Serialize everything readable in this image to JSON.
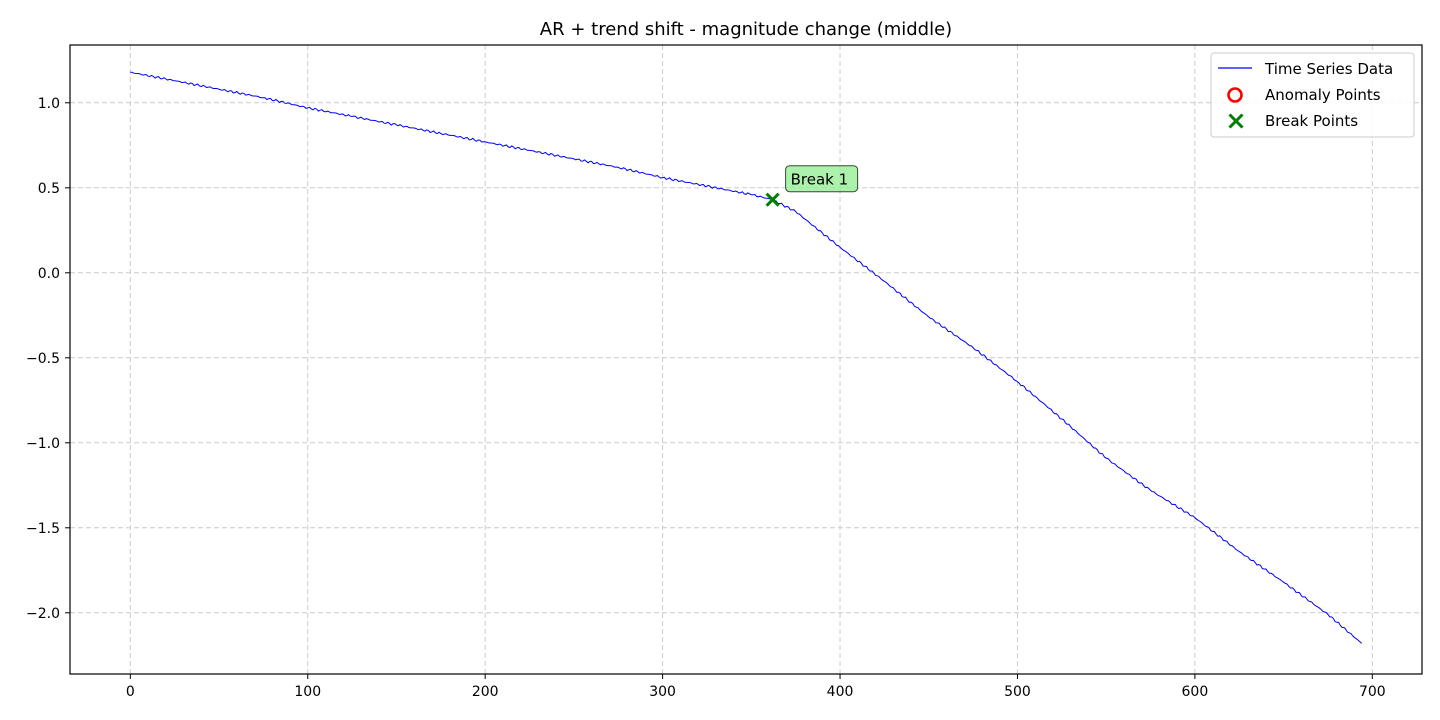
{
  "chart_data": {
    "type": "line",
    "title": "AR + trend shift - magnitude change (middle)",
    "xlabel": "",
    "ylabel": "",
    "xlim": [
      -34,
      728
    ],
    "ylim": [
      -2.36,
      1.34
    ],
    "x_ticks": [
      0,
      100,
      200,
      300,
      400,
      500,
      600,
      700
    ],
    "x_tick_labels": [
      "0",
      "100",
      "200",
      "300",
      "400",
      "500",
      "600",
      "700"
    ],
    "y_ticks": [
      1.0,
      0.5,
      0.0,
      -0.5,
      -1.0,
      -1.5,
      -2.0
    ],
    "y_tick_labels": [
      "1.0",
      "0.5",
      "0.0",
      "−0.5",
      "−1.0",
      "−1.5",
      "−2.0"
    ],
    "grid": true,
    "legend_position": "top-right",
    "series": [
      {
        "name": "Time Series Data",
        "color": "#0000ff",
        "x": [
          0,
          25,
          50,
          75,
          100,
          125,
          150,
          175,
          200,
          225,
          250,
          275,
          300,
          325,
          350,
          362,
          375,
          400,
          425,
          450,
          475,
          500,
          525,
          550,
          575,
          600,
          625,
          650,
          675,
          694
        ],
        "y": [
          1.18,
          1.13,
          1.08,
          1.03,
          0.97,
          0.92,
          0.87,
          0.82,
          0.77,
          0.72,
          0.67,
          0.62,
          0.56,
          0.51,
          0.46,
          0.43,
          0.36,
          0.15,
          -0.05,
          -0.26,
          -0.44,
          -0.64,
          -0.86,
          -1.09,
          -1.28,
          -1.44,
          -1.64,
          -1.82,
          -2.01,
          -2.18
        ]
      }
    ],
    "anomaly_points": {
      "name": "Anomaly Points",
      "color": "#ff0000",
      "x": [],
      "y": []
    },
    "break_points": {
      "name": "Break Points",
      "color": "#008000",
      "x": [
        362
      ],
      "y": [
        0.43
      ],
      "labels": [
        "Break 1"
      ]
    }
  }
}
